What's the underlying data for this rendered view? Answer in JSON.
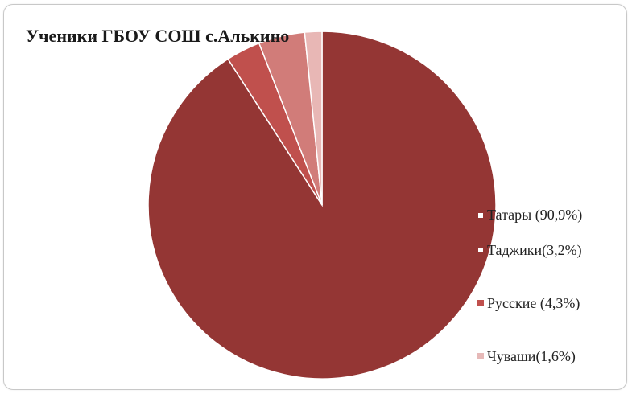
{
  "chart_data": {
    "type": "pie",
    "title": "Ученики ГБОУ СОШ с.Алькино",
    "start_angle_deg": 0,
    "direction": "clockwise",
    "slices": [
      {
        "label": "Татары (90,9%)",
        "value": 90.9,
        "color": "#943634",
        "swatch_fill": "#ffffff",
        "swatch_border": "#943634"
      },
      {
        "label": "Таджики(3,2%)",
        "value": 3.2,
        "color": "#c0504d",
        "swatch_fill": "#ffffff",
        "swatch_border": "#943634"
      },
      {
        "label": "Русские (4,3%)",
        "value": 4.3,
        "color": "#d17c79",
        "swatch_fill": "#c0504d",
        "swatch_border": "#c0504d"
      },
      {
        "label": "Чуваши(1,6%)",
        "value": 1.6,
        "color": "#e8b7b5",
        "swatch_fill": "#e6b9b8",
        "swatch_border": "#e6b9b8"
      }
    ],
    "legend_position": "right"
  }
}
